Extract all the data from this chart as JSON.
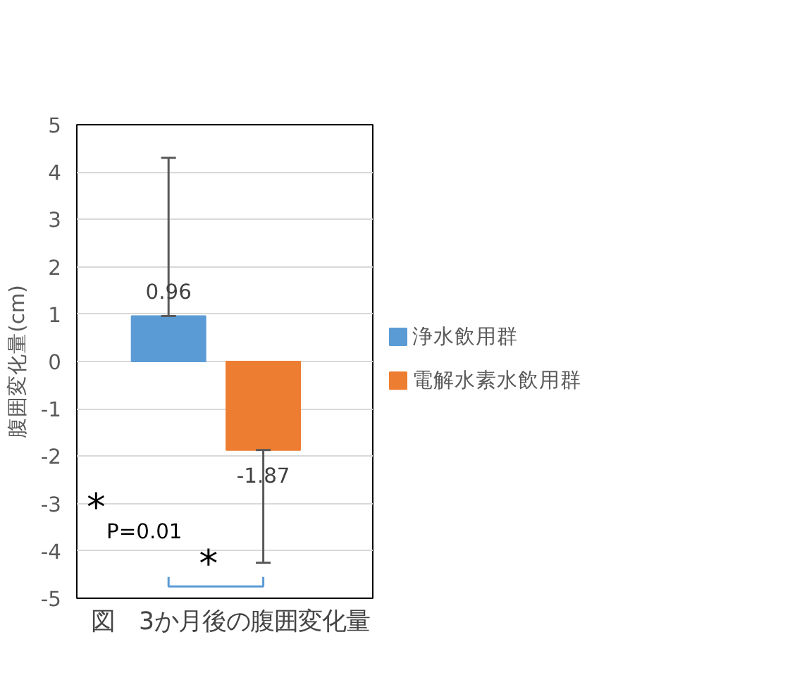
{
  "chart_data": {
    "type": "bar",
    "title": "図　3か月後の腹囲変化量",
    "ylabel": "腹囲変化量(cm)",
    "categories": [
      null
    ],
    "series": [
      {
        "name": "浄水飲用群",
        "color": "#5b9bd5",
        "values": [
          0.96
        ],
        "errors": [
          [
            0.96,
            4.3
          ]
        ]
      },
      {
        "name": "電解水素水飲用群",
        "color": "#ed7d31",
        "values": [
          -1.87
        ],
        "errors": [
          [
            -4.25,
            -1.87
          ]
        ]
      }
    ],
    "ylim": [
      -5,
      5
    ],
    "yticks": [
      -5,
      -4,
      -3,
      -2,
      -1,
      0,
      1,
      2,
      3,
      4,
      5
    ],
    "grid": "y",
    "legend": "right",
    "data_labels": true,
    "annotations": [
      "*",
      "P=0.01",
      "*"
    ]
  }
}
